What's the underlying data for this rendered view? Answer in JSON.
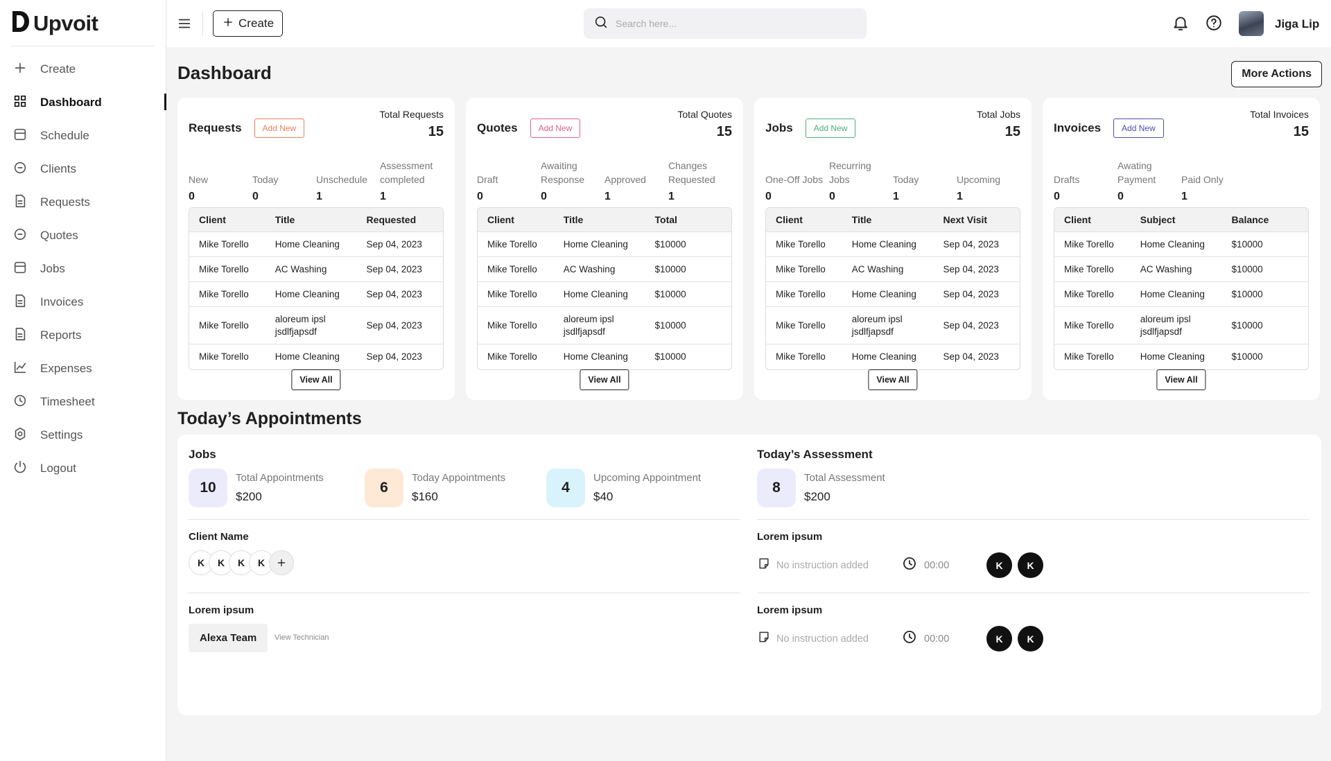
{
  "brand": "Upvoit",
  "sidebar": {
    "items": [
      "Create",
      "Dashboard",
      "Schedule",
      "Clients",
      "Requests",
      "Quotes",
      "Jobs",
      "Invoices",
      "Reports",
      "Expenses",
      "Timesheet",
      "Settings",
      "Logout"
    ],
    "active": 1
  },
  "topbar": {
    "create": "Create",
    "search_placeholder": "Search here...",
    "user": "Jiga Lip"
  },
  "page_title": "Dashboard",
  "more_actions": "More Actions",
  "cards": [
    {
      "title": "Requests",
      "add_new": "Add New",
      "accent": "#e8825a",
      "total_label": "Total Requests",
      "total": 15,
      "stats": [
        {
          "label": "New",
          "value": 0
        },
        {
          "label": "Today",
          "value": 0
        },
        {
          "label": "Unschedule",
          "value": 1
        },
        {
          "label": "Assessment completed",
          "value": 1
        }
      ],
      "columns": [
        "Client",
        "Title",
        "Requested"
      ],
      "rows": [
        [
          "Mike Torello",
          "Home Cleaning",
          "Sep 04, 2023"
        ],
        [
          "Mike Torello",
          "AC Washing",
          "Sep 04, 2023"
        ],
        [
          "Mike Torello",
          "Home Cleaning",
          "Sep 04, 2023"
        ],
        [
          "Mike Torello",
          "aloreum ipsl jsdlfjapsdf",
          "Sep 04, 2023"
        ],
        [
          "Mike Torello",
          "Home Cleaning",
          "Sep 04, 2023"
        ]
      ],
      "view_all": "View All"
    },
    {
      "title": "Quotes",
      "add_new": "Add New",
      "accent": "#e0608a",
      "total_label": "Total Quotes",
      "total": 15,
      "stats": [
        {
          "label": "Draft",
          "value": 0
        },
        {
          "label": "Awaiting Response",
          "value": 0
        },
        {
          "label": "Approved",
          "value": 1
        },
        {
          "label": "Changes Requested",
          "value": 1
        }
      ],
      "columns": [
        "Client",
        "Title",
        "Total"
      ],
      "rows": [
        [
          "Mike Torello",
          "Home Cleaning",
          "$10000"
        ],
        [
          "Mike Torello",
          "AC Washing",
          "$10000"
        ],
        [
          "Mike Torello",
          "Home Cleaning",
          "$10000"
        ],
        [
          "Mike Torello",
          "aloreum ipsl jsdlfjapsdf",
          "$10000"
        ],
        [
          "Mike Torello",
          "Home Cleaning",
          "$10000"
        ]
      ],
      "view_all": "View All"
    },
    {
      "title": "Jobs",
      "add_new": "Add New",
      "accent": "#4caf7d",
      "total_label": "Total Jobs",
      "total": 15,
      "stats": [
        {
          "label": "One-Off Jobs",
          "value": 0
        },
        {
          "label": "Recurring Jobs",
          "value": 0
        },
        {
          "label": "Today",
          "value": 1
        },
        {
          "label": "Upcoming",
          "value": 1
        }
      ],
      "columns": [
        "Client",
        "Title",
        "Next Visit"
      ],
      "rows": [
        [
          "Mike Torello",
          "Home Cleaning",
          "Sep 04, 2023"
        ],
        [
          "Mike Torello",
          "AC Washing",
          "Sep 04, 2023"
        ],
        [
          "Mike Torello",
          "Home Cleaning",
          "Sep 04, 2023"
        ],
        [
          "Mike Torello",
          "aloreum ipsl jsdlfjapsdf",
          "Sep 04, 2023"
        ],
        [
          "Mike Torello",
          "Home Cleaning",
          "Sep 04, 2023"
        ]
      ],
      "view_all": "View All"
    },
    {
      "title": "Invoices",
      "add_new": "Add New",
      "accent": "#4a4fa8",
      "total_label": "Total Invoices",
      "total": 15,
      "stats": [
        {
          "label": "Drafts",
          "value": 0
        },
        {
          "label": "Awating Payment",
          "value": 0
        },
        {
          "label": "Paid Only",
          "value": 1
        }
      ],
      "columns": [
        "Client",
        "Subject",
        "Balance"
      ],
      "rows": [
        [
          "Mike Torello",
          "Home Cleaning",
          "$10000"
        ],
        [
          "Mike Torello",
          "AC Washing",
          "$10000"
        ],
        [
          "Mike Torello",
          "Home Cleaning",
          "$10000"
        ],
        [
          "Mike Torello",
          "aloreum ipsl jsdlfjapsdf",
          "$10000"
        ],
        [
          "Mike Torello",
          "Home Cleaning",
          "$10000"
        ]
      ],
      "view_all": "View All"
    }
  ],
  "appointments": {
    "title": "Today’s Appointments",
    "jobs": {
      "title": "Jobs",
      "tiles": [
        {
          "value": 10,
          "label": "Total Appointments",
          "amount": "$200",
          "color": "#ecebfb"
        },
        {
          "value": 6,
          "label": "Today Appointments",
          "amount": "$160",
          "color": "#fde9d6"
        },
        {
          "value": 4,
          "label": "Upcoming Appointment",
          "amount": "$40",
          "color": "#d8f3fb"
        }
      ],
      "client_name": "Client Name",
      "avatars": [
        "K",
        "K",
        "K",
        "K"
      ],
      "team_label": "Lorem ipsum",
      "team": "Alexa Team",
      "view_technician": "View Technician"
    },
    "assessment": {
      "title": "Today’s Assessment",
      "tile": {
        "value": 8,
        "label": "Total Assessment",
        "amount": "$200",
        "color": "#ecebfb"
      },
      "blocks": [
        {
          "title": "Lorem ipsum",
          "instruction": "No instruction added",
          "time": "00:00",
          "avatars": [
            "K",
            "K"
          ]
        },
        {
          "title": "Lorem ipsum",
          "instruction": "No instruction added",
          "time": "00:00",
          "avatars": [
            "K",
            "K"
          ]
        }
      ]
    }
  }
}
